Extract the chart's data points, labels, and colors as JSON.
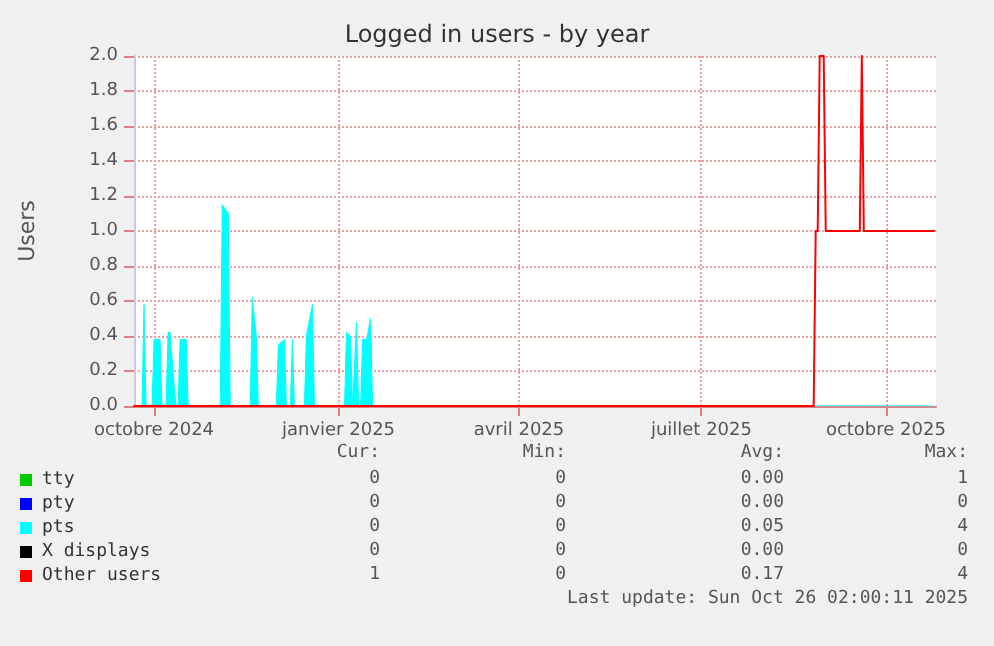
{
  "chart_data": {
    "type": "line",
    "title": "Logged in users - by year",
    "ylabel": "Users",
    "xlim": [
      "2024-09-21",
      "2025-10-26"
    ],
    "xticks": [
      {
        "value": "2024-10-01",
        "label": "octobre 2024"
      },
      {
        "value": "2025-01-01",
        "label": "janvier 2025"
      },
      {
        "value": "2025-04-01",
        "label": "avril 2025"
      },
      {
        "value": "2025-07-01",
        "label": "juillet 2025"
      },
      {
        "value": "2025-10-01",
        "label": "octobre 2025"
      }
    ],
    "ylim": [
      0,
      2
    ],
    "yticks": [
      {
        "value": 0,
        "label": "0.0"
      },
      {
        "value": 0.2,
        "label": "0.2"
      },
      {
        "value": 0.4,
        "label": "0.4"
      },
      {
        "value": 0.6,
        "label": "0.6"
      },
      {
        "value": 0.8,
        "label": "0.8"
      },
      {
        "value": 1,
        "label": "1.0"
      },
      {
        "value": 1.2,
        "label": "1.2"
      },
      {
        "value": 1.4,
        "label": "1.4"
      },
      {
        "value": 1.6,
        "label": "1.6"
      },
      {
        "value": 1.8,
        "label": "1.8"
      },
      {
        "value": 2,
        "label": "2.0"
      }
    ],
    "grid": true,
    "legend": "bottom left",
    "marker": "none",
    "line_style": "solid",
    "series": [
      {
        "name": "tty",
        "color": "#00cc00"
      },
      {
        "name": "pty",
        "color": "#0000ff"
      },
      {
        "name": "pts",
        "color": "#00ffff",
        "type": "area",
        "x": [
          "2024-09-21",
          "2024-09-25",
          "2024-09-26",
          "2024-09-27",
          "2024-09-30",
          "2024-10-01",
          "2024-10-04",
          "2024-10-05",
          "2024-10-07",
          "2024-10-08",
          "2024-10-09",
          "2024-10-11",
          "2024-10-12",
          "2024-10-13",
          "2024-10-14",
          "2024-10-17",
          "2024-10-18",
          "2024-11-03",
          "2024-11-04",
          "2024-11-07",
          "2024-11-08",
          "2024-11-18",
          "2024-11-19",
          "2024-11-21",
          "2024-11-22",
          "2024-12-01",
          "2024-12-02",
          "2024-12-05",
          "2024-12-06",
          "2024-12-08",
          "2024-12-09",
          "2024-12-10",
          "2024-12-15",
          "2024-12-16",
          "2024-12-19",
          "2024-12-20",
          "2025-01-04",
          "2025-01-05",
          "2025-01-07",
          "2025-01-08",
          "2025-01-10",
          "2025-01-11",
          "2025-01-12",
          "2025-01-13",
          "2025-01-15",
          "2025-01-17",
          "2025-01-18",
          "2025-10-25"
        ],
        "values": [
          0,
          0,
          0.58,
          0,
          0,
          0.38,
          0.38,
          0,
          0,
          0.42,
          0.42,
          0.12,
          0,
          0,
          0.38,
          0.38,
          0,
          0,
          1.15,
          1.1,
          0,
          0,
          0.62,
          0.4,
          0,
          0,
          0.35,
          0.38,
          0,
          0,
          0.38,
          0,
          0,
          0.4,
          0.58,
          0,
          0,
          0.42,
          0.4,
          0,
          0.48,
          0,
          0,
          0.38,
          0.38,
          0.5,
          0,
          0
        ]
      },
      {
        "name": "X displays",
        "color": "#000000"
      },
      {
        "name": "Other users",
        "color": "#ff0000",
        "x": [
          "2024-09-21",
          "2025-08-26",
          "2025-08-27",
          "2025-08-28",
          "2025-08-29",
          "2025-08-31",
          "2025-09-01",
          "2025-09-18",
          "2025-09-19",
          "2025-09-20",
          "2025-10-25"
        ],
        "values": [
          0,
          0,
          1,
          1,
          2,
          2,
          1,
          1,
          2,
          1,
          1
        ]
      }
    ],
    "annotations": [
      "Cur:",
      "Min:",
      "Avg:",
      "Max:",
      "0",
      "0",
      "0.00",
      "1",
      "0",
      "0",
      "0.00",
      "0",
      "0",
      "0",
      "0.05",
      "4",
      "0",
      "0",
      "0.00",
      "0",
      "1",
      "0",
      "0.17",
      "4",
      "Last update: Sun Oct 26 02:00:11 2025"
    ]
  }
}
